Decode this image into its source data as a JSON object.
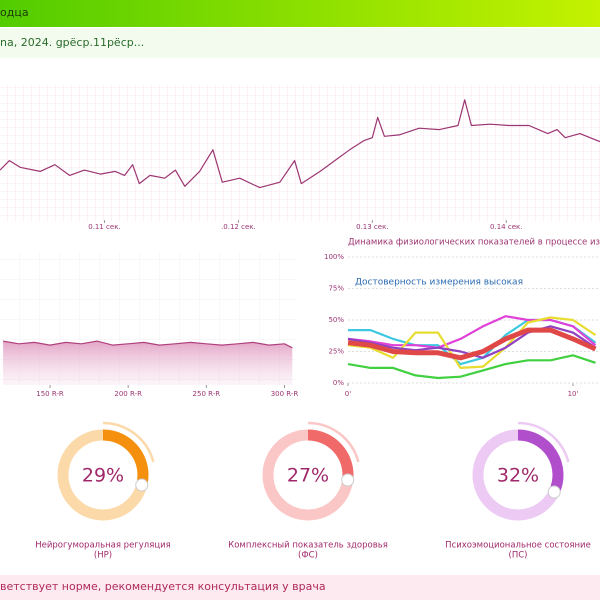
{
  "header": {
    "title": "одца",
    "subtitle": "na, 2024. gрёср.11рёср..."
  },
  "footer": {
    "text": "ветствует норме, рекомендуется консультация у врача"
  },
  "chart_data": [
    {
      "type": "line",
      "color": "#9c3572",
      "x": [
        0.1022,
        0.1029,
        0.1037,
        0.1052,
        0.1063,
        0.1074,
        0.1085,
        0.1097,
        0.1108,
        0.1115,
        0.1121,
        0.1126,
        0.1134,
        0.1145,
        0.1153,
        0.116,
        0.1171,
        0.1181,
        0.1188,
        0.1201,
        0.1216,
        0.1231,
        0.1242,
        0.1247,
        0.1261,
        0.1272,
        0.1283,
        0.1294,
        0.13,
        0.1304,
        0.1309,
        0.132,
        0.1335,
        0.135,
        0.1364,
        0.1369,
        0.1374,
        0.1388,
        0.1402,
        0.1417,
        0.1431,
        0.1438,
        0.1444,
        0.1455,
        0.147
      ],
      "values": [
        37,
        44,
        39,
        36,
        41,
        33,
        37,
        34,
        36,
        33,
        41,
        27,
        33,
        31,
        37,
        25,
        36,
        52,
        28,
        31,
        24,
        28,
        44,
        27,
        36,
        44,
        52,
        59,
        61,
        76,
        62,
        63,
        68,
        67,
        70,
        89,
        70,
        71,
        70,
        70,
        64,
        67,
        61,
        64,
        58
      ],
      "xlim": [
        0.1022,
        0.147
      ],
      "ylim": [
        0,
        100
      ],
      "xticks": [
        {
          "value": 0.11,
          "label": "0.11 сек."
        },
        {
          "value": 0.12,
          "label": ".0.12 сек."
        },
        {
          "value": 0.13,
          "label": "0.13 сек."
        },
        {
          "value": 0.14,
          "label": "0.14 сек."
        }
      ]
    },
    {
      "type": "area",
      "color": "#b0407e",
      "x": [
        120,
        130,
        140,
        150,
        160,
        170,
        180,
        190,
        200,
        210,
        220,
        230,
        240,
        250,
        260,
        270,
        280,
        290,
        300,
        305
      ],
      "values": [
        33,
        31,
        32,
        30,
        32,
        31,
        33,
        30,
        31,
        32,
        30,
        31,
        32,
        31,
        30,
        31,
        32,
        30,
        31,
        28
      ],
      "xlim": [
        118,
        308
      ],
      "ylim": [
        0,
        100
      ],
      "xticks": [
        {
          "value": 150,
          "label": "150 R-R"
        },
        {
          "value": 200,
          "label": "200 R-R"
        },
        {
          "value": 250,
          "label": "250 R-R"
        },
        {
          "value": 300,
          "label": "300 R-R"
        }
      ]
    },
    {
      "type": "line",
      "title": "Динамика физиологических показателей в процессе измерения",
      "annotation": "Достоверность измерения высокая",
      "x": [
        0,
        1,
        2,
        3,
        4,
        5,
        6,
        7,
        8,
        9,
        10,
        11
      ],
      "series": [
        {
          "color": "#3cc8e0",
          "values": [
            42,
            42,
            35,
            30,
            30,
            15,
            20,
            38,
            50,
            50,
            45,
            32
          ]
        },
        {
          "color": "#e040d8",
          "values": [
            35,
            33,
            30,
            30,
            28,
            35,
            45,
            53,
            50,
            50,
            45,
            30
          ]
        },
        {
          "color": "#e8dc30",
          "values": [
            30,
            28,
            20,
            40,
            40,
            12,
            13,
            28,
            48,
            52,
            50,
            38
          ]
        },
        {
          "color": "#40d040",
          "values": [
            15,
            12,
            12,
            6,
            4,
            5,
            10,
            15,
            18,
            18,
            22,
            16
          ]
        },
        {
          "color": "#9040c0",
          "values": [
            35,
            32,
            28,
            26,
            28,
            25,
            20,
            28,
            40,
            45,
            40,
            28
          ]
        },
        {
          "color": "#e04848",
          "values": [
            32,
            30,
            25,
            24,
            24,
            20,
            25,
            35,
            42,
            42,
            35,
            27
          ],
          "width": 5
        }
      ],
      "xlim": [
        0,
        11.2
      ],
      "ylim": [
        0,
        100
      ],
      "yticks": [
        {
          "value": 0,
          "label": "0%"
        },
        {
          "value": 25,
          "label": "25%"
        },
        {
          "value": 50,
          "label": "50%"
        },
        {
          "value": 75,
          "label": "75%"
        },
        {
          "value": 100,
          "label": "100%"
        }
      ],
      "xticks": [
        {
          "value": 0,
          "label": "0'"
        },
        {
          "value": 10,
          "label": "10'"
        }
      ]
    },
    {
      "type": "gauge",
      "categories": [
        "Нейрогуморальная регуляция",
        "Комплексный показатель здоровья",
        "Психоэмоциональное состояние"
      ],
      "abbreviations": [
        "(НР)",
        "(ФС)",
        "(ПС)"
      ],
      "values": [
        29,
        27,
        32
      ],
      "value_labels": [
        "29%",
        "27%",
        "32%"
      ],
      "colors": [
        "#f5900f",
        "#f06a6a",
        "#b04ecc"
      ],
      "track_colors": [
        "#fcd9a8",
        "#fbc6c6",
        "#eccaf4"
      ]
    }
  ]
}
